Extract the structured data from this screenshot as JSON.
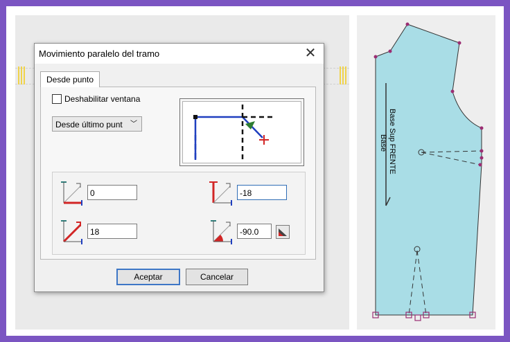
{
  "dialog": {
    "title": "Movimiento paralelo del tramo",
    "tab_label": "Desde punto",
    "checkbox_label": "Deshabilitar ventana",
    "dropdown_value": "Desde último punt",
    "fields": {
      "dx": "0",
      "dy": "-18",
      "length": "18",
      "angle": "-90.0"
    },
    "ok_label": "Aceptar",
    "cancel_label": "Cancelar"
  },
  "pattern": {
    "label_main": "Base Sup FRENTE",
    "label_sub": "Base"
  },
  "colors": {
    "pattern_fill": "#a9dde6",
    "point_marker": "#9b2d72",
    "accent_blue": "#1f3fbf",
    "accent_red": "#d22525"
  }
}
